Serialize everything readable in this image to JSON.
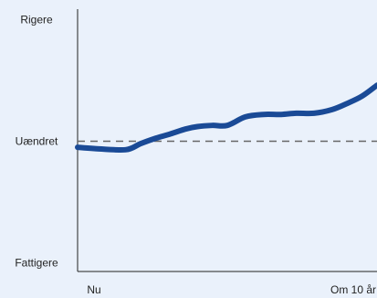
{
  "chart_data": {
    "type": "line",
    "title": "",
    "xlabel": "",
    "ylabel": "",
    "x_tick_labels": [
      "Nu",
      "Om 10 år"
    ],
    "y_tick_labels": [
      {
        "label": "Rigere",
        "value": 1
      },
      {
        "label": "Uændret",
        "value": 0
      },
      {
        "label": "Fattigere",
        "value": -1
      }
    ],
    "xlim": [
      0,
      10
    ],
    "ylim": [
      -1.07,
      1.07
    ],
    "reference_line": {
      "y": 0,
      "style": "dashed"
    },
    "grid": false,
    "colors": {
      "series": "#1a4a96",
      "reference": "#666666",
      "axis": "#222222",
      "background": "#eaf1fb"
    },
    "series": [
      {
        "x": [
          0,
          0.55,
          1.6,
          2.1,
          2.55,
          3.1,
          3.6,
          4.0,
          4.5,
          5.0,
          5.6,
          6.2,
          6.8,
          7.3,
          7.9,
          8.5,
          9.0,
          9.5,
          10.0
        ],
        "values": [
          -0.05,
          -0.06,
          -0.07,
          -0.02,
          0.02,
          0.06,
          0.1,
          0.12,
          0.13,
          0.13,
          0.2,
          0.22,
          0.22,
          0.23,
          0.23,
          0.26,
          0.31,
          0.37,
          0.46
        ]
      }
    ]
  }
}
